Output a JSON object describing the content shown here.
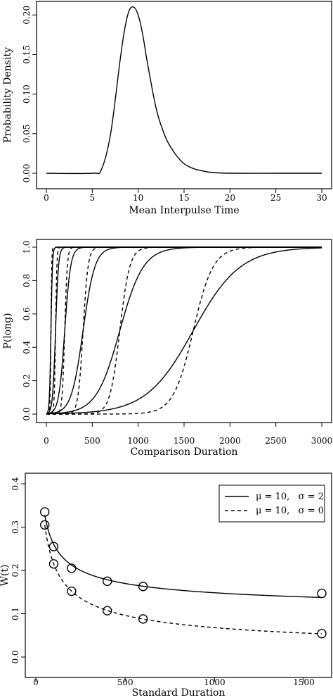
{
  "chart_data": [
    {
      "type": "line",
      "xlabel": "Mean Interpulse Time",
      "ylabel": "Probability Density",
      "xlim": [
        0,
        30
      ],
      "ylim": [
        0,
        0.21
      ],
      "xticks": [
        "0",
        "5",
        "10",
        "15",
        "20",
        "25",
        "30"
      ],
      "yticks": [
        "0.00",
        "0.05",
        "0.10",
        "0.15",
        "0.20"
      ],
      "grid": false,
      "series": [
        {
          "style": "solid",
          "x": [
            0,
            5,
            6,
            7,
            8,
            8.5,
            9,
            9.5,
            10,
            10.5,
            11,
            12,
            13,
            14,
            15,
            16,
            17,
            18,
            20,
            25,
            30
          ],
          "y": [
            0.0,
            0.0,
            0.005,
            0.05,
            0.14,
            0.18,
            0.205,
            0.21,
            0.2,
            0.175,
            0.14,
            0.08,
            0.045,
            0.025,
            0.012,
            0.006,
            0.003,
            0.001,
            0.0,
            0.0,
            0.0
          ]
        }
      ]
    },
    {
      "type": "line",
      "xlabel": "Comparison Duration",
      "ylabel": "P(long)",
      "xlim": [
        0,
        3000
      ],
      "ylim": [
        0,
        1
      ],
      "xticks": [
        "0",
        "500",
        "1000",
        "1500",
        "2000",
        "2500",
        "3000"
      ],
      "yticks": [
        "0.0",
        "0.2",
        "0.4",
        "0.6",
        "0.8",
        "1.0"
      ],
      "grid": false,
      "series": [
        {
          "style": "solid",
          "midpoint": 50,
          "spread": 8
        },
        {
          "style": "solid",
          "midpoint": 100,
          "spread": 16
        },
        {
          "style": "solid",
          "midpoint": 200,
          "spread": 32
        },
        {
          "style": "solid",
          "midpoint": 400,
          "spread": 64
        },
        {
          "style": "solid",
          "midpoint": 800,
          "spread": 128
        },
        {
          "style": "solid",
          "midpoint": 1600,
          "spread": 256
        },
        {
          "style": "dashed",
          "midpoint": 50,
          "spread": 4
        },
        {
          "style": "dashed",
          "midpoint": 100,
          "spread": 7
        },
        {
          "style": "dashed",
          "midpoint": 200,
          "spread": 14
        },
        {
          "style": "dashed",
          "midpoint": 400,
          "spread": 27
        },
        {
          "style": "dashed",
          "midpoint": 800,
          "spread": 54
        },
        {
          "style": "dashed",
          "midpoint": 1600,
          "spread": 108
        }
      ]
    },
    {
      "type": "line",
      "xlabel": "Standard Duration",
      "ylabel": "W(t)",
      "xlim": [
        0,
        1600
      ],
      "ylim": [
        0,
        0.4
      ],
      "xticks": [
        "0",
        "500",
        "1000",
        "1500"
      ],
      "yticks": [
        "0.0",
        "0.1",
        "0.2",
        "0.3",
        "0.4"
      ],
      "grid": false,
      "legend": {
        "position": "top-right",
        "items": [
          {
            "label": "μ = 10,   σ = 2",
            "style": "solid"
          },
          {
            "label": "μ = 10,   σ = 0",
            "style": "dashed"
          }
        ]
      },
      "series": [
        {
          "name": "μ = 10,   σ = 2",
          "style": "solid",
          "x": [
            50,
            100,
            200,
            400,
            600,
            1600
          ],
          "y": [
            0.335,
            0.255,
            0.205,
            0.175,
            0.163,
            0.147
          ]
        },
        {
          "name": "μ = 10,   σ = 0",
          "style": "dashed",
          "x": [
            50,
            100,
            200,
            400,
            600,
            1600
          ],
          "y": [
            0.305,
            0.215,
            0.152,
            0.107,
            0.088,
            0.054
          ]
        }
      ]
    }
  ]
}
